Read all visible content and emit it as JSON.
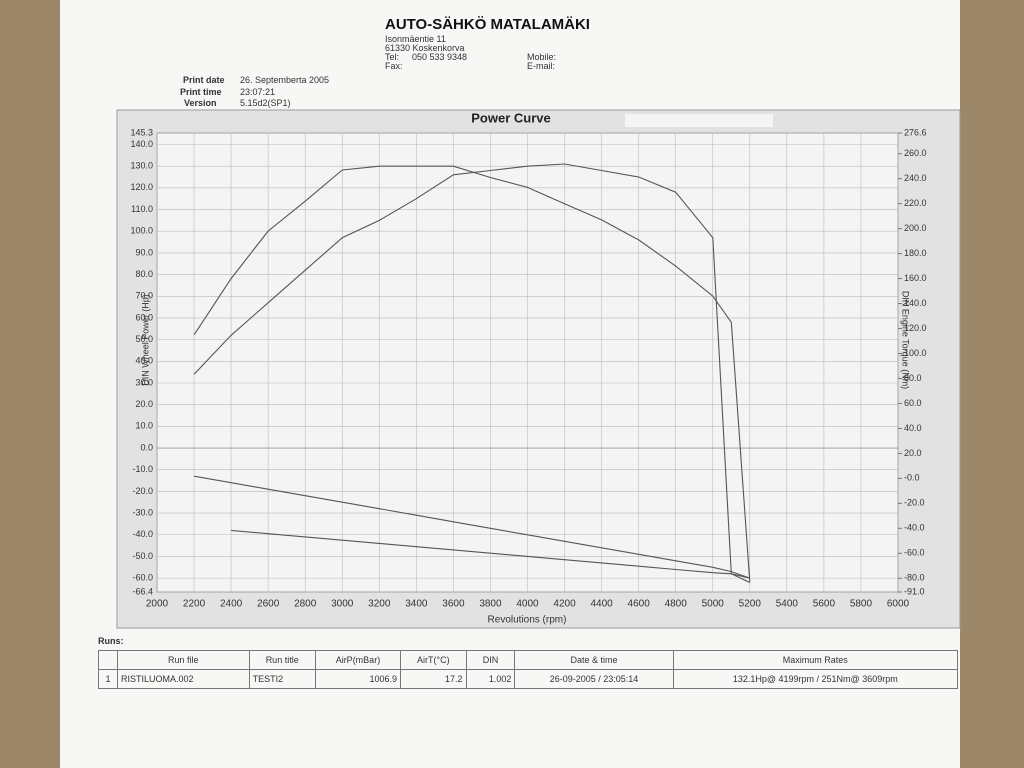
{
  "header": {
    "company": "AUTO-SÄHKÖ MATALAMÄKI",
    "address": "Isonmäentie 11",
    "city": "61330 Koskenkorva",
    "tel_label": "Tel:",
    "tel": "050 533 9348",
    "fax_label": "Fax:",
    "mobile_label": "Mobile:",
    "email_label": "E-mail:",
    "print_date_label": "Print date",
    "print_date": "26. Septemberta 2005",
    "print_time_label": "Print time",
    "print_time": "23:07:21",
    "version_label": "Version",
    "version": "5.15d2(SP1)"
  },
  "chart_data": {
    "type": "line",
    "title": "Power Curve",
    "xlabel": "Revolutions (rpm)",
    "ylabel": "DIN Wheel Power (Hp)",
    "y2label": "DIN Engine Torque (Nm)",
    "grid": true,
    "xlim": [
      2000,
      6000
    ],
    "xticks": [
      2000,
      2200,
      2400,
      2600,
      2800,
      3000,
      3200,
      3400,
      3600,
      3800,
      4000,
      4200,
      4400,
      4600,
      4800,
      5000,
      5200,
      5400,
      5600,
      5800,
      6000
    ],
    "ylim": [
      -66.4,
      145.3
    ],
    "yticks": [
      -66.4,
      {
        "value": -60,
        "label": "-60.0"
      },
      {
        "value": -50,
        "label": "-50.0"
      },
      {
        "value": -40,
        "label": "-40.0"
      },
      {
        "value": -30,
        "label": "-30.0"
      },
      {
        "value": -20,
        "label": "-20.0"
      },
      {
        "value": -10,
        "label": "-10.0"
      },
      {
        "value": 0,
        "label": "0.0"
      },
      {
        "value": 10,
        "label": "10.0"
      },
      {
        "value": 20,
        "label": "20.0"
      },
      {
        "value": 30,
        "label": "30.0"
      },
      {
        "value": 40,
        "label": "40.0"
      },
      {
        "value": 50,
        "label": "50.0"
      },
      {
        "value": 60,
        "label": "60.0"
      },
      {
        "value": 70,
        "label": "70.0"
      },
      {
        "value": 80,
        "label": "80.0"
      },
      {
        "value": 90,
        "label": "90.0"
      },
      {
        "value": 100,
        "label": "100.0"
      },
      {
        "value": 110,
        "label": "110.0"
      },
      {
        "value": 120,
        "label": "120.0"
      },
      {
        "value": 130,
        "label": "130.0"
      },
      {
        "value": 140,
        "label": "140.0"
      },
      145.3
    ],
    "y2lim": [
      -91,
      276.6
    ],
    "y2ticks": [
      {
        "value": -91,
        "label": "-91.0"
      },
      {
        "value": -80,
        "label": "-80.0"
      },
      {
        "value": -60,
        "label": "-60.0"
      },
      {
        "value": -40,
        "label": "-40.0"
      },
      {
        "value": -20,
        "label": "-20.0"
      },
      {
        "value": 0,
        "label": "-0.0"
      },
      {
        "value": 20,
        "label": "20.0"
      },
      {
        "value": 40,
        "label": "40.0"
      },
      {
        "value": 60,
        "label": "60.0"
      },
      {
        "value": 80,
        "label": "80.0"
      },
      {
        "value": 100,
        "label": "100.0"
      },
      {
        "value": 120,
        "label": "120.0"
      },
      {
        "value": 140,
        "label": "140.0"
      },
      {
        "value": 160,
        "label": "160.0"
      },
      {
        "value": 180,
        "label": "180.0"
      },
      {
        "value": 200,
        "label": "200.0"
      },
      {
        "value": 220,
        "label": "220.0"
      },
      {
        "value": 240,
        "label": "240.0"
      },
      {
        "value": 260,
        "label": "260.0"
      },
      276.6
    ],
    "x": [
      2200,
      2400,
      2600,
      2800,
      3000,
      3200,
      3400,
      3600,
      3800,
      4000,
      4200,
      4400,
      4600,
      4800,
      5000,
      5100,
      5200
    ],
    "series": [
      {
        "color": "#555555",
        "axis": "y2",
        "values": [
          115,
          160,
          198,
          222,
          247,
          250,
          250,
          250,
          241,
          233,
          220,
          207,
          191,
          170,
          146,
          125,
          -83
        ]
      },
      {
        "color": "#555555",
        "values": [
          34,
          52,
          67,
          82,
          97,
          105,
          115,
          126,
          128,
          130,
          131,
          128,
          125,
          118,
          97,
          -58,
          -62
        ]
      },
      {
        "color": "#555555",
        "values": [
          -13,
          -16,
          -19,
          -22,
          -25,
          -28,
          -31,
          -34,
          -37,
          -40,
          -43,
          -46,
          -49,
          -52,
          -55,
          -57,
          -60
        ]
      },
      {
        "color": "#555555",
        "values": [
          null,
          -38,
          -39.5,
          -41,
          -42.5,
          -44,
          -45.5,
          -47,
          -48.5,
          -50,
          -51.5,
          -53,
          -54.5,
          -56,
          -57.5,
          -58,
          -60
        ]
      }
    ]
  },
  "runs": {
    "title": "Runs:",
    "headers": [
      "Run file",
      "Run title",
      "AirP(mBar)",
      "AirT(°C)",
      "DIN",
      "Date & time",
      "Maximum Rates"
    ],
    "rows": [
      [
        "1",
        "RISTILUOMA.002",
        "TESTI2",
        "1006.9",
        "17.2",
        "1.002",
        "26-09-2005 / 23:05:14",
        "132.1Hp@ 4199rpm / 251Nm@ 3609rpm"
      ]
    ]
  }
}
